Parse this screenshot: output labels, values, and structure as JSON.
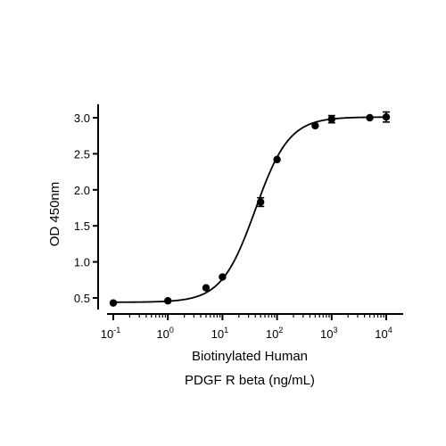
{
  "chart_data": {
    "type": "scatter",
    "title": "",
    "xlabel": [
      "Biotinylated Human",
      "PDGF R beta (ng/mL)"
    ],
    "ylabel": "OD 450nm",
    "x_scale": "log",
    "xlim": [
      0.1,
      10000
    ],
    "ylim": [
      0.35,
      3.1
    ],
    "x_ticks": [
      {
        "value": 0.1,
        "base": "10",
        "exp": "-1"
      },
      {
        "value": 1,
        "base": "10",
        "exp": "0"
      },
      {
        "value": 10,
        "base": "10",
        "exp": "1"
      },
      {
        "value": 100,
        "base": "10",
        "exp": "2"
      },
      {
        "value": 1000,
        "base": "10",
        "exp": "3"
      },
      {
        "value": 10000,
        "base": "10",
        "exp": "4"
      }
    ],
    "y_ticks": [
      "0.5",
      "1.0",
      "1.5",
      "2.0",
      "2.5",
      "3.0"
    ],
    "grid": false,
    "legend": "none",
    "series": [
      {
        "points": [
          {
            "x": 0.1,
            "y": 0.43,
            "err": 0.0
          },
          {
            "x": 1,
            "y": 0.46,
            "err": 0.0
          },
          {
            "x": 5,
            "y": 0.64,
            "err": 0.0
          },
          {
            "x": 10,
            "y": 0.79,
            "err": 0.0
          },
          {
            "x": 50,
            "y": 1.83,
            "err": 0.06
          },
          {
            "x": 100,
            "y": 2.42,
            "err": 0.0
          },
          {
            "x": 500,
            "y": 2.89,
            "err": 0.0
          },
          {
            "x": 1000,
            "y": 2.98,
            "err": 0.05
          },
          {
            "x": 5000,
            "y": 3.0,
            "err": 0.0
          },
          {
            "x": 10000,
            "y": 3.01,
            "err": 0.07
          }
        ],
        "fit": {
          "model": "4PL",
          "bottom": 0.44,
          "top": 3.01,
          "ec50": 40,
          "hill": 1.4
        },
        "color": "#000000"
      }
    ]
  }
}
